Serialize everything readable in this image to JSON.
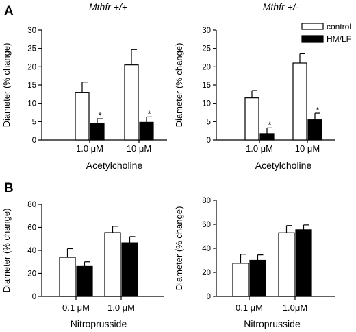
{
  "panel_letters": {
    "a": "A",
    "b": "B"
  },
  "genotypes": {
    "left": "Mthfr +/+",
    "right": "Mthfr +/-"
  },
  "legend": {
    "control": "control",
    "treated": "HM/LF"
  },
  "colors": {
    "control": "#ffffff",
    "treated": "#000000",
    "axis": "#000000"
  },
  "chart_data": [
    {
      "type": "bar",
      "title": "Mthfr +/+",
      "xlabel": "Acetylcholine",
      "ylabel": "Diameter (% change)",
      "ylim": [
        0,
        30
      ],
      "yticks": [
        "0",
        "5",
        "10",
        "15",
        "20",
        "25",
        "30"
      ],
      "categories": [
        "1.0 μM",
        "10 μM"
      ],
      "series": [
        {
          "name": "control",
          "values": [
            13,
            20.5
          ],
          "errors": [
            2.8,
            4.2
          ]
        },
        {
          "name": "HM/LF",
          "values": [
            4.5,
            4.8
          ],
          "errors": [
            1.3,
            1.5
          ]
        }
      ],
      "annotations": [
        {
          "series": "HM/LF",
          "category": "1.0 μM",
          "text": "*"
        },
        {
          "series": "HM/LF",
          "category": "10 μM",
          "text": "*"
        }
      ]
    },
    {
      "type": "bar",
      "title": "Mthfr +/-",
      "xlabel": "Acetylcholine",
      "ylabel": "Diameter (% change)",
      "ylim": [
        0,
        30
      ],
      "yticks": [
        "0",
        "5",
        "10",
        "15",
        "20",
        "25",
        "30"
      ],
      "categories": [
        "1.0 μM",
        "10 μM"
      ],
      "series": [
        {
          "name": "control",
          "values": [
            11.5,
            21
          ],
          "errors": [
            2,
            2.7
          ]
        },
        {
          "name": "HM/LF",
          "values": [
            1.7,
            5.5
          ],
          "errors": [
            1.6,
            1.8
          ]
        }
      ],
      "annotations": [
        {
          "series": "HM/LF",
          "category": "1.0 μM",
          "text": "*"
        },
        {
          "series": "HM/LF",
          "category": "10 μM",
          "text": "*"
        }
      ],
      "legend_position": "top-right"
    },
    {
      "type": "bar",
      "xlabel": "Nitroprusside",
      "ylabel": "Diameter (% change)",
      "ylim": [
        0,
        80
      ],
      "yticks": [
        "0",
        "20",
        "40",
        "60",
        "80"
      ],
      "categories": [
        "0.1 μM",
        "1.0 μM"
      ],
      "series": [
        {
          "name": "control",
          "values": [
            34,
            55.5
          ],
          "errors": [
            7.5,
            5.5
          ]
        },
        {
          "name": "HM/LF",
          "values": [
            26,
            46.5
          ],
          "errors": [
            4,
            5.5
          ]
        }
      ],
      "annotations": []
    },
    {
      "type": "bar",
      "xlabel": "Nitroprusside",
      "ylabel": "Diameter (% change)",
      "ylim": [
        0,
        80
      ],
      "yticks": [
        "0",
        "20",
        "40",
        "60",
        "80"
      ],
      "categories": [
        "0.1 μM",
        "1.0μM"
      ],
      "series": [
        {
          "name": "control",
          "values": [
            27.5,
            53
          ],
          "errors": [
            7.5,
            6
          ]
        },
        {
          "name": "HM/LF",
          "values": [
            30,
            55.5
          ],
          "errors": [
            4.5,
            4
          ]
        }
      ],
      "annotations": []
    }
  ]
}
